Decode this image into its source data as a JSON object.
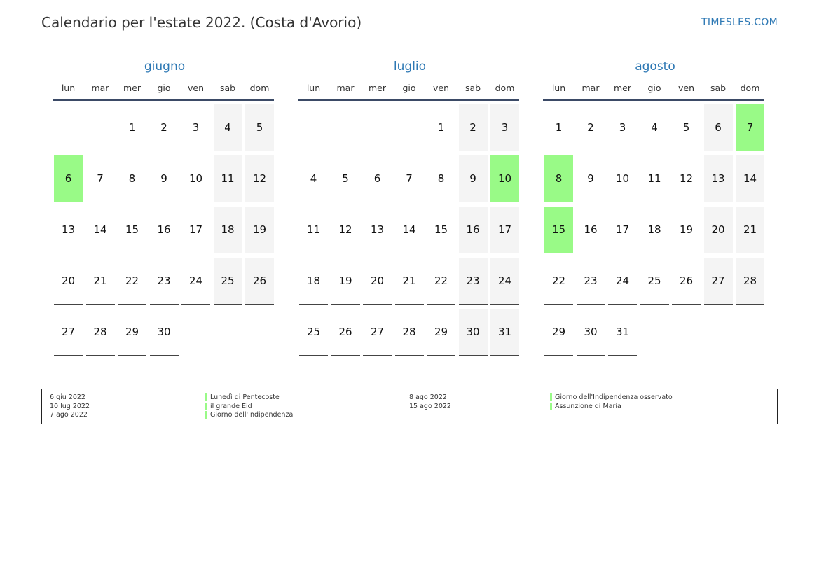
{
  "title": "Calendario per l'estate 2022. (Costa d'Avorio)",
  "site": "TIMESLES.COM",
  "weekdays": [
    "lun",
    "mar",
    "mer",
    "gio",
    "ven",
    "sab",
    "dom"
  ],
  "months": [
    {
      "name": "giugno",
      "offset": 2,
      "days": 30,
      "holidays": [
        6
      ]
    },
    {
      "name": "luglio",
      "offset": 4,
      "days": 31,
      "holidays": [
        10
      ]
    },
    {
      "name": "agosto",
      "offset": 0,
      "days": 31,
      "holidays": [
        7,
        8,
        15
      ]
    }
  ],
  "colors": {
    "accent": "#2d78b4",
    "holiday": "#99fa87",
    "weekend": "#f4f4f4"
  },
  "legend": [
    {
      "date": "6 giu 2022",
      "name": "Lunedì di Pentecoste"
    },
    {
      "date": "10 lug 2022",
      "name": "il grande Eid"
    },
    {
      "date": "7 ago 2022",
      "name": "Giorno dell'Indipendenza"
    },
    {
      "date": "8 ago 2022",
      "name": "Giorno dell'Indipendenza osservato"
    },
    {
      "date": "15 ago 2022",
      "name": "Assunzione di Maria"
    }
  ]
}
